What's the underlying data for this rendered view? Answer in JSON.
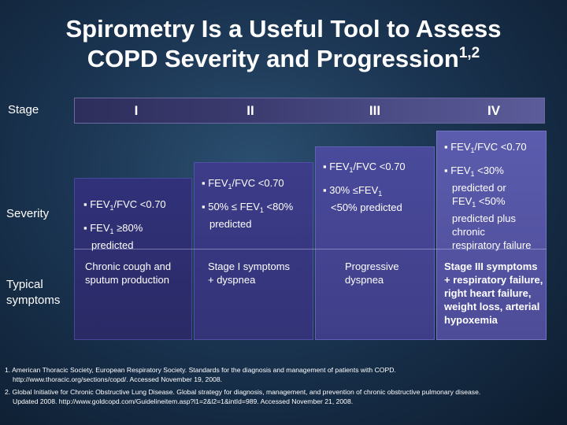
{
  "title": {
    "line1": "Spirometry Is a Useful Tool to Assess",
    "line2": "COPD Severity and Progression",
    "superscript": "1,2"
  },
  "row_labels": {
    "stage": "Stage",
    "severity": "Severity",
    "typical_line1": "Typical",
    "typical_line2": "symptoms"
  },
  "stages": [
    "I",
    "II",
    "III",
    "IV"
  ],
  "columns": [
    {
      "severity": [
        "▪ FEV1/FVC <0.70",
        "▪ FEV1 ≥80%",
        "predicted"
      ],
      "symptoms": [
        "Chronic cough and",
        "sputum production"
      ]
    },
    {
      "severity": [
        "▪ FEV1/FVC <0.70",
        "▪ 50% ≤ FEV1 <80%",
        "predicted"
      ],
      "symptoms": [
        "Stage I symptoms",
        "+ dyspnea"
      ]
    },
    {
      "severity": [
        "▪ FEV1/FVC <0.70",
        "▪ 30% ≤FEV1",
        "<50% predicted"
      ],
      "symptoms": [
        "Progressive",
        "dyspnea"
      ]
    },
    {
      "severity": [
        "▪ FEV1/FVC <0.70",
        "▪ FEV1 <30%",
        "predicted or",
        "FEV1 <50%",
        "predicted plus",
        "chronic",
        "respiratory failure"
      ],
      "symptoms": [
        "Stage III symptoms",
        "+ respiratory failure,",
        "right heart failure,",
        "weight loss, arterial",
        "hypoxemia"
      ]
    }
  ],
  "references": [
    {
      "line1": "1. American Thoracic Society, European Respiratory Society. Standards for the diagnosis and management of patients with COPD.",
      "line2": "http://www.thoracic.org/sections/copd/. Accessed November 19, 2008."
    },
    {
      "line1": "2. Global Initiative for Chronic Obstructive Lung Disease. Global strategy for diagnosis, management, and prevention of chronic obstructive pulmonary disease.",
      "line2": "Updated 2008. http://www.goldcopd.com/Guidelineitem.asp?l1=2&l2=1&intId=989. Accessed November 21, 2008."
    }
  ]
}
